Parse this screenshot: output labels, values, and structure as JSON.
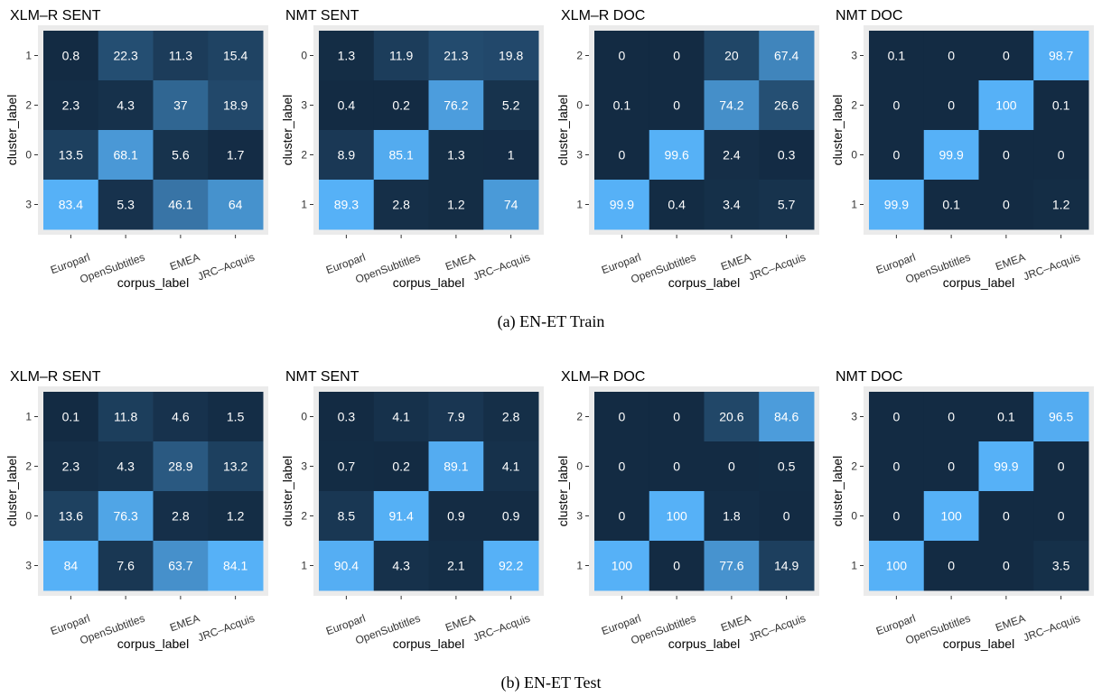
{
  "colors": {
    "low": "#132B43",
    "high": "#56B1F7",
    "panel_bg": "#EBEBEB",
    "text": "#FFFFFF",
    "tick_mark": "#333333"
  },
  "figures": [
    {
      "caption": "(a) EN-ET Train"
    },
    {
      "caption": "(b) EN-ET Test"
    }
  ],
  "chart_data": [
    {
      "type": "heatmap",
      "figure": 0,
      "title": "XLM–R SENT",
      "xlabel": "corpus_label",
      "ylabel": "cluster_label",
      "x_categories": [
        "Europarl",
        "OpenSubtitles",
        "EMEA",
        "JRC–Acquis"
      ],
      "y_categories": [
        "1",
        "2",
        "0",
        "3"
      ],
      "values": [
        [
          0.8,
          22.3,
          11.3,
          15.4
        ],
        [
          2.3,
          4.3,
          37,
          18.9
        ],
        [
          13.5,
          68.1,
          5.6,
          1.7
        ],
        [
          83.4,
          5.3,
          46.1,
          64
        ]
      ],
      "labels": [
        [
          "0.8",
          "22.3",
          "11.3",
          "15.4"
        ],
        [
          "2.3",
          "4.3",
          "37",
          "18.9"
        ],
        [
          "13.5",
          "68.1",
          "5.6",
          "1.7"
        ],
        [
          "83.4",
          "5.3",
          "46.1",
          "64"
        ]
      ]
    },
    {
      "type": "heatmap",
      "figure": 0,
      "title": "NMT SENT",
      "xlabel": "corpus_label",
      "ylabel": "cluster_label",
      "x_categories": [
        "Europarl",
        "OpenSubtitles",
        "EMEA",
        "JRC–Acquis"
      ],
      "y_categories": [
        "0",
        "3",
        "2",
        "1"
      ],
      "values": [
        [
          1.3,
          11.9,
          21.3,
          19.8
        ],
        [
          0.4,
          0.2,
          76.2,
          5.2
        ],
        [
          8.9,
          85.1,
          1.3,
          1
        ],
        [
          89.3,
          2.8,
          1.2,
          74
        ]
      ],
      "labels": [
        [
          "1.3",
          "11.9",
          "21.3",
          "19.8"
        ],
        [
          "0.4",
          "0.2",
          "76.2",
          "5.2"
        ],
        [
          "8.9",
          "85.1",
          "1.3",
          "1"
        ],
        [
          "89.3",
          "2.8",
          "1.2",
          "74"
        ]
      ]
    },
    {
      "type": "heatmap",
      "figure": 0,
      "title": "XLM–R DOC",
      "xlabel": "corpus_label",
      "ylabel": "cluster_label",
      "x_categories": [
        "Europarl",
        "OpenSubtitles",
        "EMEA",
        "JRC–Acquis"
      ],
      "y_categories": [
        "2",
        "0",
        "3",
        "1"
      ],
      "values": [
        [
          0,
          0,
          20,
          67.4
        ],
        [
          0.1,
          0,
          74.2,
          26.6
        ],
        [
          0,
          99.6,
          2.4,
          0.3
        ],
        [
          99.9,
          0.4,
          3.4,
          5.7
        ]
      ],
      "labels": [
        [
          "0",
          "0",
          "20",
          "67.4"
        ],
        [
          "0.1",
          "0",
          "74.2",
          "26.6"
        ],
        [
          "0",
          "99.6",
          "2.4",
          "0.3"
        ],
        [
          "99.9",
          "0.4",
          "3.4",
          "5.7"
        ]
      ]
    },
    {
      "type": "heatmap",
      "figure": 0,
      "title": "NMT DOC",
      "xlabel": "corpus_label",
      "ylabel": "cluster_label",
      "x_categories": [
        "Europarl",
        "OpenSubtitles",
        "EMEA",
        "JRC–Acquis"
      ],
      "y_categories": [
        "3",
        "2",
        "0",
        "1"
      ],
      "values": [
        [
          0.1,
          0,
          0,
          98.7
        ],
        [
          0,
          0,
          100,
          0.1
        ],
        [
          0,
          99.9,
          0,
          0
        ],
        [
          99.9,
          0.1,
          0,
          1.2
        ]
      ],
      "labels": [
        [
          "0.1",
          "0",
          "0",
          "98.7"
        ],
        [
          "0",
          "0",
          "100",
          "0.1"
        ],
        [
          "0",
          "99.9",
          "0",
          "0"
        ],
        [
          "99.9",
          "0.1",
          "0",
          "1.2"
        ]
      ]
    },
    {
      "type": "heatmap",
      "figure": 1,
      "title": "XLM–R SENT",
      "xlabel": "corpus_label",
      "ylabel": "cluster_label",
      "x_categories": [
        "Europarl",
        "OpenSubtitles",
        "EMEA",
        "JRC–Acquis"
      ],
      "y_categories": [
        "1",
        "2",
        "0",
        "3"
      ],
      "values": [
        [
          0.1,
          11.8,
          4.6,
          1.5
        ],
        [
          2.3,
          4.3,
          28.9,
          13.2
        ],
        [
          13.6,
          76.3,
          2.8,
          1.2
        ],
        [
          84,
          7.6,
          63.7,
          84.1
        ]
      ],
      "labels": [
        [
          "0.1",
          "11.8",
          "4.6",
          "1.5"
        ],
        [
          "2.3",
          "4.3",
          "28.9",
          "13.2"
        ],
        [
          "13.6",
          "76.3",
          "2.8",
          "1.2"
        ],
        [
          "84",
          "7.6",
          "63.7",
          "84.1"
        ]
      ]
    },
    {
      "type": "heatmap",
      "figure": 1,
      "title": "NMT SENT",
      "xlabel": "corpus_label",
      "ylabel": "cluster_label",
      "x_categories": [
        "Europarl",
        "OpenSubtitles",
        "EMEA",
        "JRC–Acquis"
      ],
      "y_categories": [
        "0",
        "3",
        "2",
        "1"
      ],
      "values": [
        [
          0.3,
          4.1,
          7.9,
          2.8
        ],
        [
          0.7,
          0.2,
          89.1,
          4.1
        ],
        [
          8.5,
          91.4,
          0.9,
          0.9
        ],
        [
          90.4,
          4.3,
          2.1,
          92.2
        ]
      ],
      "labels": [
        [
          "0.3",
          "4.1",
          "7.9",
          "2.8"
        ],
        [
          "0.7",
          "0.2",
          "89.1",
          "4.1"
        ],
        [
          "8.5",
          "91.4",
          "0.9",
          "0.9"
        ],
        [
          "90.4",
          "4.3",
          "2.1",
          "92.2"
        ]
      ]
    },
    {
      "type": "heatmap",
      "figure": 1,
      "title": "XLM–R DOC",
      "xlabel": "corpus_label",
      "ylabel": "cluster_label",
      "x_categories": [
        "Europarl",
        "OpenSubtitles",
        "EMEA",
        "JRC–Acquis"
      ],
      "y_categories": [
        "2",
        "0",
        "3",
        "1"
      ],
      "values": [
        [
          0,
          0,
          20.6,
          84.6
        ],
        [
          0,
          0,
          0,
          0.5
        ],
        [
          0,
          100,
          1.8,
          0
        ],
        [
          100,
          0,
          77.6,
          14.9
        ]
      ],
      "labels": [
        [
          "0",
          "0",
          "20.6",
          "84.6"
        ],
        [
          "0",
          "0",
          "0",
          "0.5"
        ],
        [
          "0",
          "100",
          "1.8",
          "0"
        ],
        [
          "100",
          "0",
          "77.6",
          "14.9"
        ]
      ]
    },
    {
      "type": "heatmap",
      "figure": 1,
      "title": "NMT DOC",
      "xlabel": "corpus_label",
      "ylabel": "cluster_label",
      "x_categories": [
        "Europarl",
        "OpenSubtitles",
        "EMEA",
        "JRC–Acquis"
      ],
      "y_categories": [
        "3",
        "2",
        "0",
        "1"
      ],
      "values": [
        [
          0,
          0,
          0.1,
          96.5
        ],
        [
          0,
          0,
          99.9,
          0
        ],
        [
          0,
          100,
          0,
          0
        ],
        [
          100,
          0,
          0,
          3.5
        ]
      ],
      "labels": [
        [
          "0",
          "0",
          "0.1",
          "96.5"
        ],
        [
          "0",
          "0",
          "99.9",
          "0"
        ],
        [
          "0",
          "100",
          "0",
          "0"
        ],
        [
          "100",
          "0",
          "0",
          "3.5"
        ]
      ]
    }
  ]
}
